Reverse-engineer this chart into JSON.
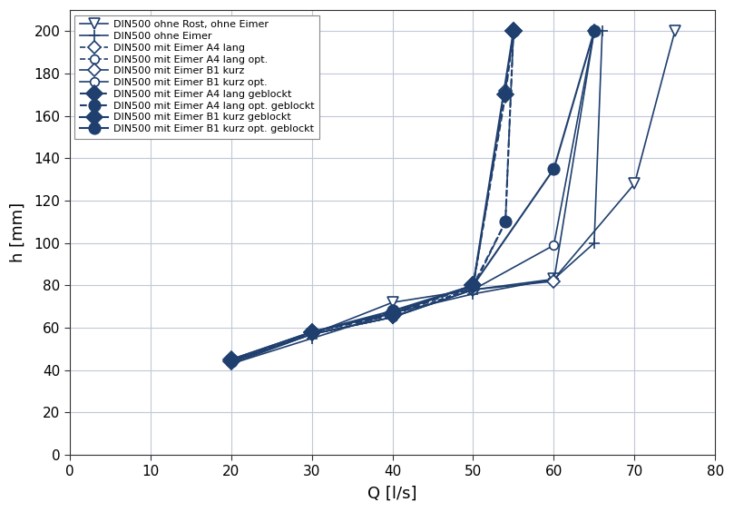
{
  "color": "#1f3f6e",
  "background": "#ffffff",
  "grid_color": "#c0c8d8",
  "xlabel": "Q [l/s]",
  "ylabel": "h [mm]",
  "xlim": [
    0,
    80
  ],
  "ylim": [
    0,
    210
  ],
  "xticks": [
    0,
    10,
    20,
    30,
    40,
    50,
    60,
    70,
    80
  ],
  "yticks": [
    0,
    20,
    40,
    60,
    80,
    100,
    120,
    140,
    160,
    180,
    200
  ],
  "series": [
    {
      "label": "DIN500 ohne Rost, ohne Eimer",
      "Q": [
        20,
        30,
        40,
        50,
        60,
        70,
        75
      ],
      "h": [
        43,
        57,
        72,
        78,
        83,
        128,
        200
      ],
      "linestyle": "-",
      "marker": "v",
      "filled": false,
      "markersize": 8,
      "linewidth": 1.2
    },
    {
      "label": "DIN500 ohne Eimer",
      "Q": [
        20,
        30,
        40,
        50,
        60,
        65,
        66
      ],
      "h": [
        43,
        55,
        67,
        76,
        83,
        100,
        200
      ],
      "linestyle": "-",
      "marker": "plus",
      "filled": false,
      "markersize": 8,
      "linewidth": 1.2
    },
    {
      "label": "DIN500 mit Eimer A4 lang",
      "Q": [
        20,
        30,
        40,
        50,
        54,
        55
      ],
      "h": [
        44,
        57,
        65,
        79,
        172,
        200
      ],
      "linestyle": "--",
      "marker": "D",
      "filled": false,
      "markersize": 7,
      "linewidth": 1.2
    },
    {
      "label": "DIN500 mit Eimer A4 lang opt.",
      "Q": [
        20,
        30,
        40,
        50,
        54,
        55
      ],
      "h": [
        44,
        57,
        65,
        79,
        110,
        200
      ],
      "linestyle": "--",
      "marker": "o",
      "filled": false,
      "markersize": 7,
      "linewidth": 1.2
    },
    {
      "label": "DIN500 mit Eimer B1 kurz",
      "Q": [
        20,
        30,
        40,
        50,
        60,
        65
      ],
      "h": [
        44,
        57,
        65,
        78,
        82,
        200
      ],
      "linestyle": "-",
      "marker": "D",
      "filled": false,
      "markersize": 7,
      "linewidth": 1.2
    },
    {
      "label": "DIN500 mit Eimer B1 kurz opt.",
      "Q": [
        20,
        30,
        40,
        50,
        60,
        65
      ],
      "h": [
        44,
        57,
        65,
        78,
        99,
        200
      ],
      "linestyle": "-",
      "marker": "o",
      "filled": false,
      "markersize": 7,
      "linewidth": 1.2
    },
    {
      "label": "DIN500 mit Eimer A4 lang geblockt",
      "Q": [
        20,
        30,
        40,
        50,
        54,
        55
      ],
      "h": [
        44,
        58,
        66,
        80,
        170,
        200
      ],
      "linestyle": "--",
      "marker": "D",
      "filled": true,
      "markersize": 9,
      "linewidth": 1.5
    },
    {
      "label": "DIN500 mit Eimer A4 lang opt. geblockt",
      "Q": [
        20,
        30,
        40,
        50,
        54,
        55
      ],
      "h": [
        44,
        58,
        67,
        80,
        110,
        200
      ],
      "linestyle": "--",
      "marker": "o",
      "filled": true,
      "markersize": 9,
      "linewidth": 1.5
    },
    {
      "label": "DIN500 mit Eimer B1 kurz geblockt",
      "Q": [
        20,
        30,
        40,
        50,
        55
      ],
      "h": [
        45,
        58,
        67,
        80,
        200
      ],
      "linestyle": "-",
      "marker": "D",
      "filled": true,
      "markersize": 9,
      "linewidth": 1.5
    },
    {
      "label": "DIN500 mit Eimer B1 kurz opt. geblockt",
      "Q": [
        20,
        30,
        40,
        50,
        60,
        65
      ],
      "h": [
        45,
        58,
        68,
        80,
        135,
        200
      ],
      "linestyle": "-",
      "marker": "o",
      "filled": true,
      "markersize": 9,
      "linewidth": 1.5
    }
  ]
}
